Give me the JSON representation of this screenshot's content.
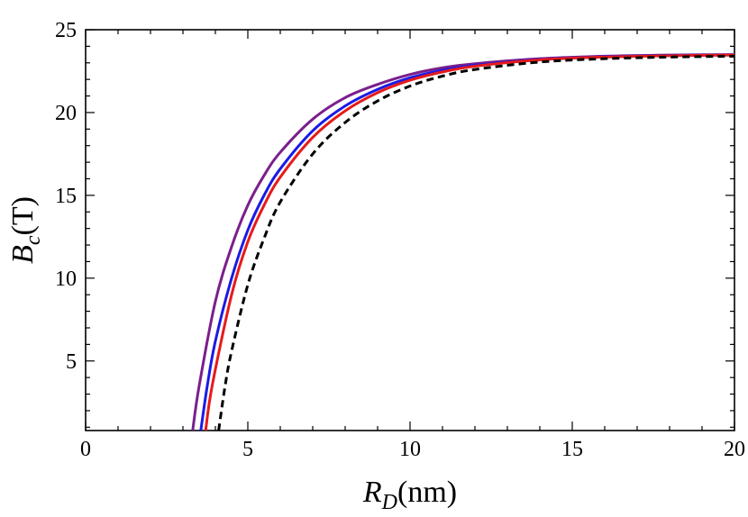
{
  "chart_data": {
    "type": "line",
    "xlabel": {
      "main": "R",
      "sub": "D",
      "unit": "(nm)"
    },
    "ylabel": {
      "main": "B",
      "sub": "c",
      "unit": "(T)"
    },
    "xlim": [
      0,
      20
    ],
    "ylim": [
      0.8,
      25
    ],
    "x_ticks": [
      0,
      5,
      10,
      15,
      20
    ],
    "y_ticks": [
      5,
      10,
      15,
      20,
      25
    ],
    "x_tick_labels": [
      "0",
      "5",
      "10",
      "15",
      "20"
    ],
    "y_tick_labels": [
      "5",
      "10",
      "15",
      "20",
      "25"
    ],
    "grid": false,
    "legend": "none",
    "series": [
      {
        "color": "#7B1E8C",
        "dash": "solid",
        "x": [
          3.3,
          3.5,
          4.0,
          4.5,
          5.0,
          5.5,
          6.0,
          7.0,
          8.0,
          9.0,
          10.0,
          11.0,
          12.0,
          14.0,
          16.0,
          18.0,
          20.0
        ],
        "y": [
          0.8,
          3.5,
          8.6,
          11.9,
          14.4,
          16.2,
          17.6,
          19.6,
          20.9,
          21.7,
          22.3,
          22.7,
          22.95,
          23.25,
          23.4,
          23.47,
          23.5
        ]
      },
      {
        "color": "#1A1AE6",
        "dash": "solid",
        "x": [
          3.55,
          3.75,
          4.0,
          4.5,
          5.0,
          5.5,
          6.0,
          7.0,
          8.0,
          9.0,
          10.0,
          11.0,
          12.0,
          14.0,
          16.0,
          18.0,
          20.0
        ],
        "y": [
          0.8,
          3.5,
          6.2,
          10.0,
          12.9,
          15.0,
          16.6,
          18.9,
          20.4,
          21.4,
          22.1,
          22.55,
          22.85,
          23.2,
          23.37,
          23.45,
          23.48
        ]
      },
      {
        "color": "#E61A1A",
        "dash": "solid",
        "x": [
          3.7,
          3.9,
          4.5,
          5.0,
          5.5,
          6.0,
          7.0,
          8.0,
          9.0,
          10.0,
          11.0,
          12.0,
          14.0,
          16.0,
          18.0,
          20.0
        ],
        "y": [
          0.8,
          3.5,
          9.0,
          12.2,
          14.4,
          16.1,
          18.5,
          20.1,
          21.2,
          21.95,
          22.45,
          22.8,
          23.18,
          23.35,
          23.43,
          23.47
        ]
      },
      {
        "color": "#000000",
        "dash": "dashed",
        "x": [
          4.1,
          4.3,
          4.5,
          5.0,
          5.5,
          6.0,
          7.0,
          8.0,
          9.0,
          10.0,
          11.0,
          12.0,
          14.0,
          16.0,
          18.0,
          20.0
        ],
        "y": [
          0.8,
          3.5,
          5.6,
          9.6,
          12.4,
          14.6,
          17.5,
          19.4,
          20.7,
          21.6,
          22.2,
          22.6,
          23.05,
          23.25,
          23.35,
          23.4
        ]
      }
    ]
  }
}
